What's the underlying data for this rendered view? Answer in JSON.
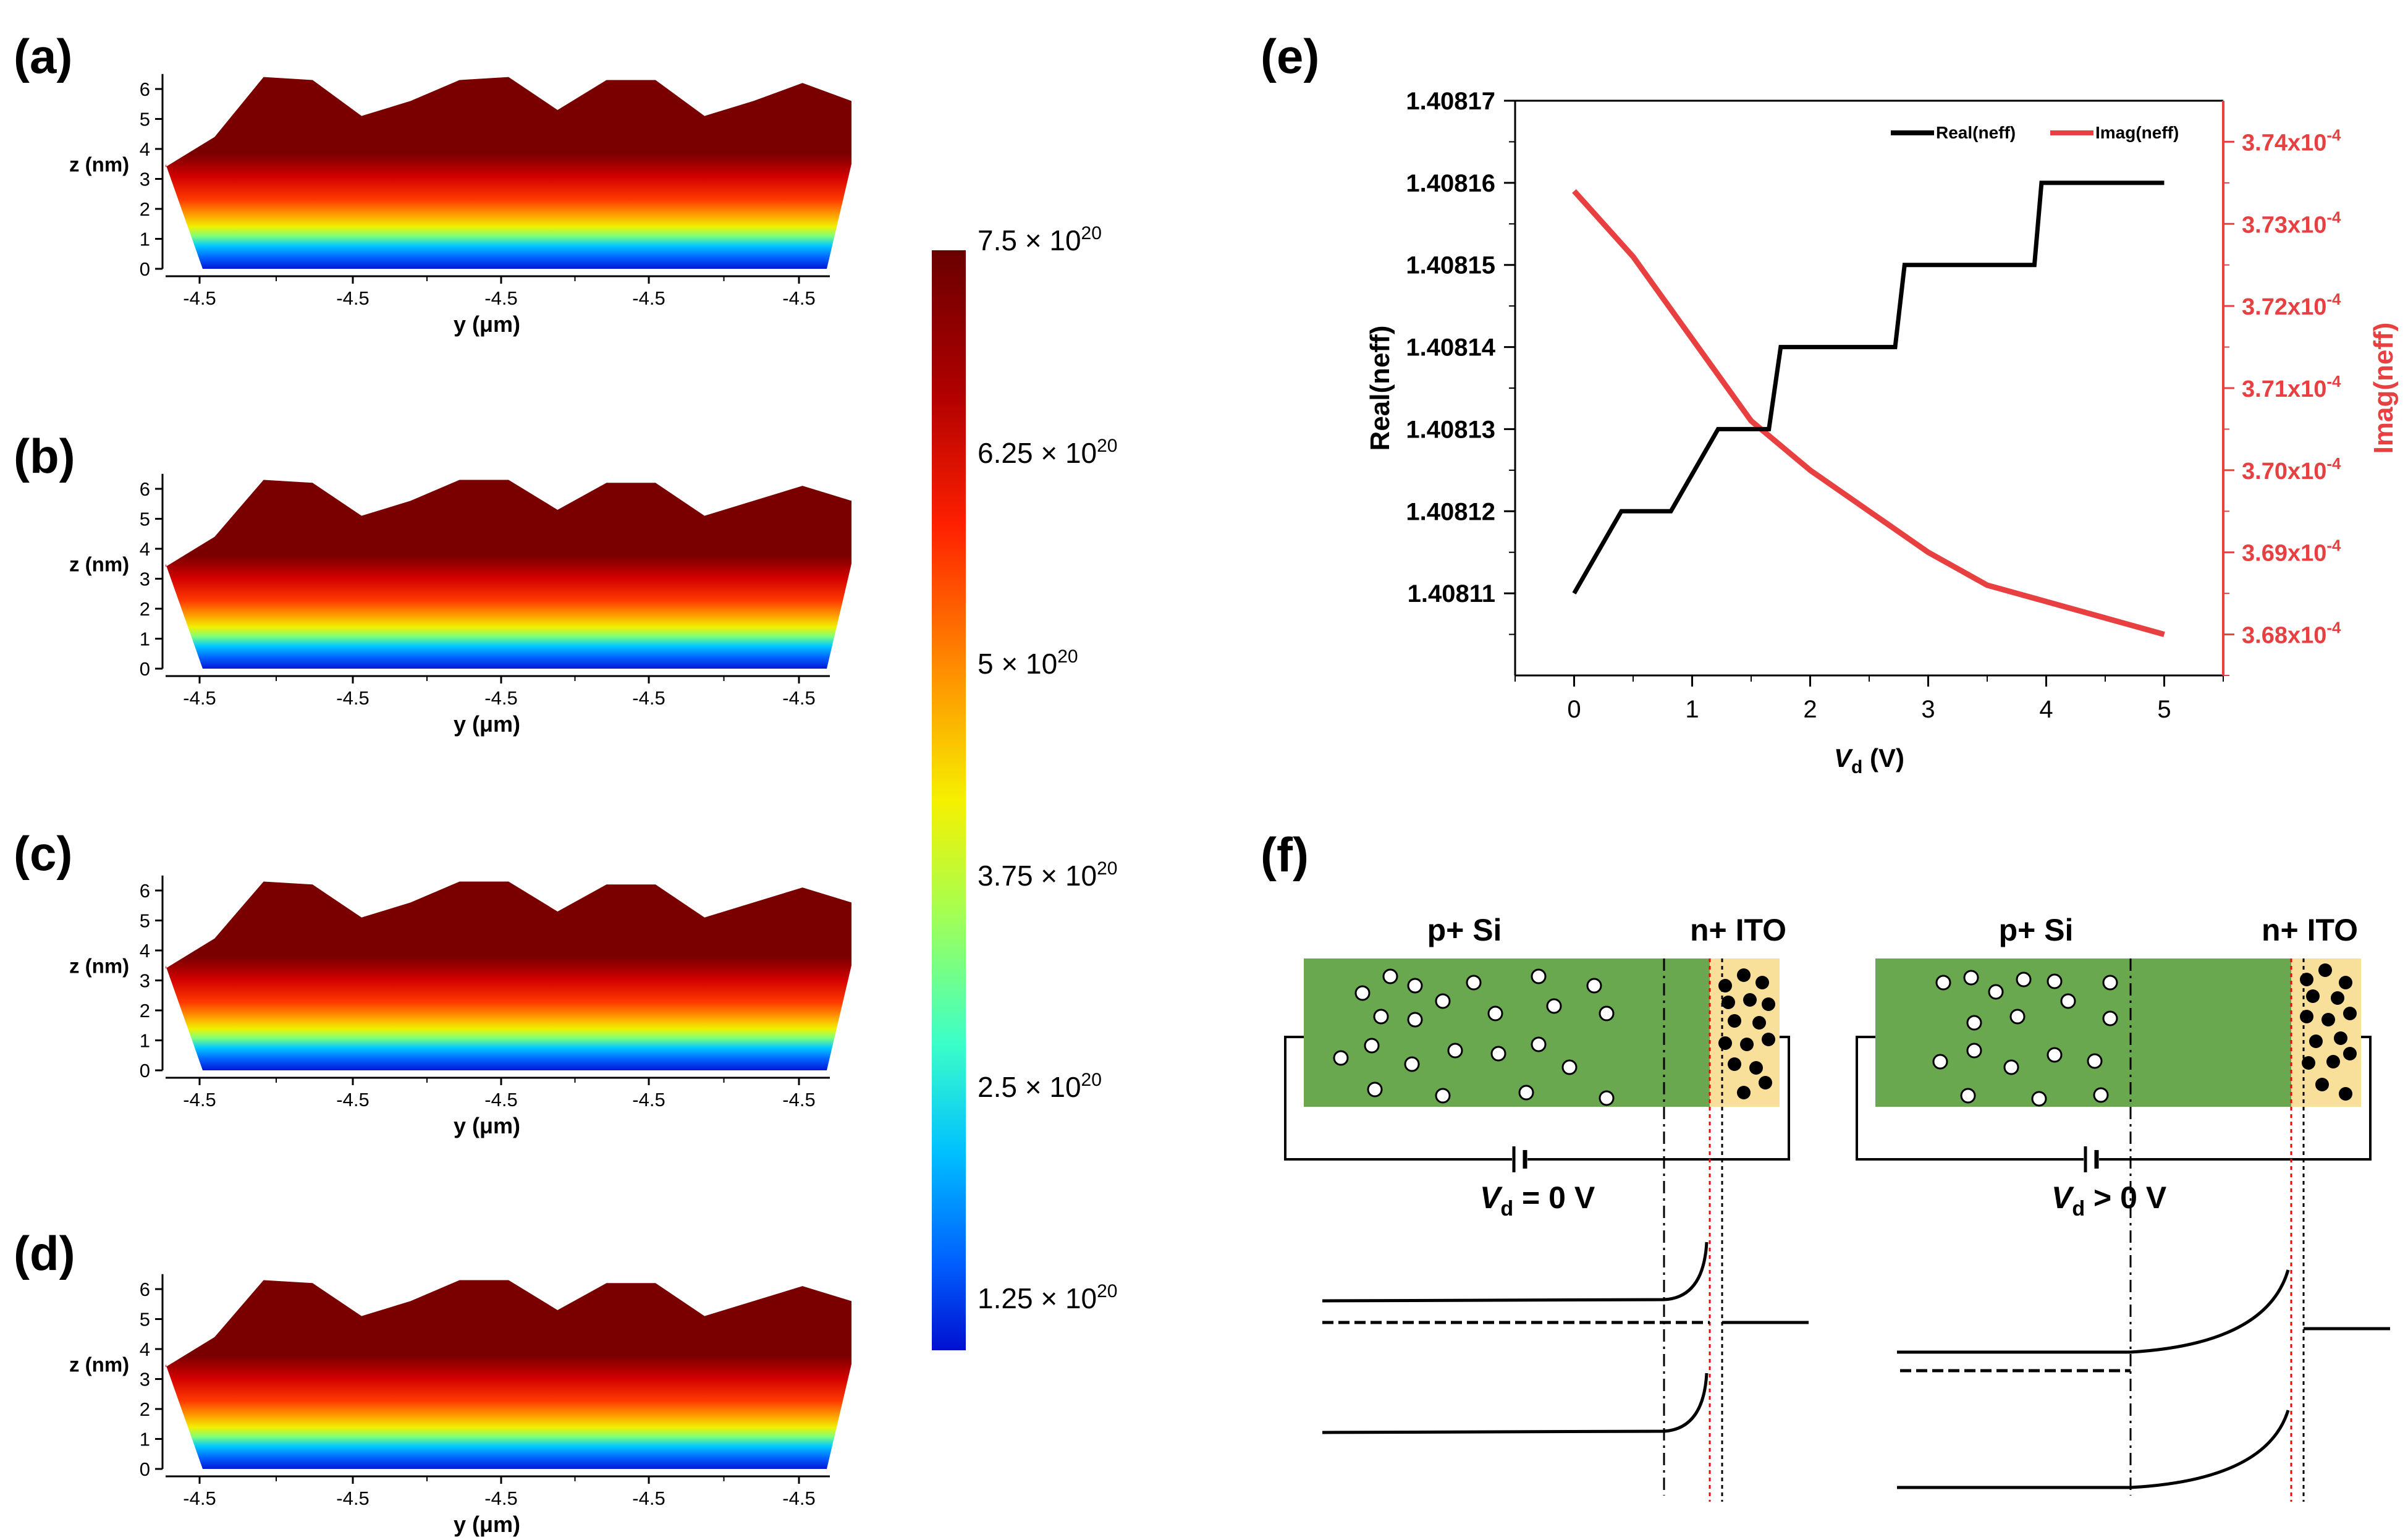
{
  "figure": {
    "panel_labels": [
      "(a)",
      "(b)",
      "(c)",
      "(d)",
      "(e)",
      "(f)"
    ]
  },
  "chart_data": [
    {
      "id": "a",
      "type": "area",
      "xlabel": "y  (μm)",
      "ylabel": "z (nm)",
      "y_ticks": [
        0,
        1,
        2,
        3,
        4,
        5,
        6
      ],
      "x_tick_labels": [
        "-4.5",
        "-4.5",
        "-4.5",
        "-4.5",
        "-4.5"
      ],
      "ylim": [
        0,
        6.5
      ],
      "surface_top_z": [
        3.4,
        4.4,
        6.4,
        6.3,
        5.1,
        5.6,
        6.3,
        6.4,
        5.3,
        6.3,
        6.3,
        5.1,
        5.6,
        6.2,
        5.6
      ],
      "surface_bottom_z": [
        3.5,
        0,
        0,
        0,
        0,
        0,
        0,
        0,
        0,
        0,
        0,
        0,
        0,
        0,
        3.5
      ]
    },
    {
      "id": "b",
      "type": "area",
      "xlabel": "y  (μm)",
      "ylabel": "z (nm)",
      "y_ticks": [
        0,
        1,
        2,
        3,
        4,
        5,
        6
      ],
      "x_tick_labels": [
        "-4.5",
        "-4.5",
        "-4.5",
        "-4.5",
        "-4.5"
      ],
      "ylim": [
        0,
        6.5
      ],
      "surface_top_z": [
        3.4,
        4.4,
        6.3,
        6.2,
        5.1,
        5.6,
        6.3,
        6.3,
        5.3,
        6.2,
        6.2,
        5.1,
        5.6,
        6.1,
        5.6
      ],
      "surface_bottom_z": [
        3.5,
        0,
        0,
        0,
        0,
        0,
        0,
        0,
        0,
        0,
        0,
        0,
        0,
        0,
        3.5
      ]
    },
    {
      "id": "c",
      "type": "area",
      "xlabel": "y  (μm)",
      "ylabel": "z (nm)",
      "y_ticks": [
        0,
        1,
        2,
        3,
        4,
        5,
        6
      ],
      "x_tick_labels": [
        "-4.5",
        "-4.5",
        "-4.5",
        "-4.5",
        "-4.5"
      ],
      "ylim": [
        0,
        6.5
      ],
      "surface_top_z": [
        3.4,
        4.4,
        6.3,
        6.2,
        5.1,
        5.6,
        6.3,
        6.3,
        5.3,
        6.2,
        6.2,
        5.1,
        5.6,
        6.1,
        5.6
      ],
      "surface_bottom_z": [
        3.5,
        0,
        0,
        0,
        0,
        0,
        0,
        0,
        0,
        0,
        0,
        0,
        0,
        0,
        3.5
      ]
    },
    {
      "id": "d",
      "type": "area",
      "xlabel": "y  (μm)",
      "ylabel": "z (nm)",
      "y_ticks": [
        0,
        1,
        2,
        3,
        4,
        5,
        6
      ],
      "x_tick_labels": [
        "-4.5",
        "-4.5",
        "-4.5",
        "-4.5",
        "-4.5"
      ],
      "ylim": [
        0,
        6.5
      ],
      "surface_top_z": [
        3.4,
        4.4,
        6.3,
        6.2,
        5.1,
        5.6,
        6.3,
        6.3,
        5.3,
        6.2,
        6.2,
        5.1,
        5.6,
        6.1,
        5.6
      ],
      "surface_bottom_z": [
        3.5,
        0,
        0,
        0,
        0,
        0,
        0,
        0,
        0,
        0,
        0,
        0,
        0,
        0,
        3.5
      ]
    },
    {
      "id": "colorbar",
      "type": "heatmap",
      "labels": [
        "7.5  × 10",
        "6.25 × 10",
        "5 × 10",
        "3.75 × 10",
        "2.5 × 10",
        "1.25 × 10"
      ],
      "exponent": "20",
      "range": [
        1.25e+20,
        7.5e+20
      ],
      "colors": [
        "#7a0000",
        "#c80000",
        "#ff3a00",
        "#ff9a00",
        "#f4f000",
        "#9cff5e",
        "#3cffc8",
        "#00c8ff",
        "#0064ff",
        "#0010d0"
      ]
    },
    {
      "id": "e",
      "type": "line",
      "xlabel_main": "V",
      "xlabel_sub": "d",
      "xlabel_unit": " (V)",
      "ylabel": "Real(neff)",
      "y2label": "Imag(neff)",
      "xlim": [
        -0.5,
        5.5
      ],
      "ylim": [
        1.4081,
        1.40817
      ],
      "y2lim": [
        3.675,
        3.745
      ],
      "x_ticks": [
        0,
        1,
        2,
        3,
        4,
        5
      ],
      "y_ticks": [
        "1.40811",
        "1.40812",
        "1.40813",
        "1.40814",
        "1.40815",
        "1.40816",
        "1.40817"
      ],
      "y2_ticks": [
        3.68,
        3.69,
        3.7,
        3.71,
        3.72,
        3.73,
        3.74
      ],
      "y2_tick_labels": [
        "3.68x10",
        "3.69x10",
        "3.70x10",
        "3.71x10",
        "3.72x10",
        "3.73x10",
        "3.74x10"
      ],
      "y2_exponent": "-4",
      "series": [
        {
          "name": "Real(neff)",
          "color": "#000000",
          "x": [
            0,
            0.4,
            0.82,
            1.22,
            1.65,
            1.75,
            2.72,
            2.8,
            3.9,
            3.96,
            5
          ],
          "y": [
            1.40811,
            1.40812,
            1.40812,
            1.40813,
            1.40813,
            1.40814,
            1.40814,
            1.40815,
            1.40815,
            1.40816,
            1.40816
          ]
        },
        {
          "name": "Imag(neff)",
          "color": "#e84040",
          "x": [
            0,
            0.5,
            1,
            1.5,
            2,
            2.5,
            3,
            3.5,
            4,
            4.5,
            5
          ],
          "y": [
            3.734,
            3.726,
            3.716,
            3.706,
            3.7,
            3.695,
            3.69,
            3.686,
            3.684,
            3.682,
            3.68
          ]
        }
      ]
    }
  ],
  "diagram_f": {
    "left": {
      "p_label": "p+ Si",
      "n_label": "n+ ITO",
      "v_main": "V",
      "v_sub": "d",
      "v_rel": "= 0 V"
    },
    "right": {
      "p_label": "p+ Si",
      "n_label": "n+ ITO",
      "v_main": "V",
      "v_sub": "d",
      "v_rel": "> 0 V"
    },
    "colors": {
      "si": "#6aa84f",
      "ito": "#f8df9a",
      "hole_fill": "#ffffff",
      "electron_fill": "#000000",
      "dashed_red": "#ff0000"
    }
  }
}
